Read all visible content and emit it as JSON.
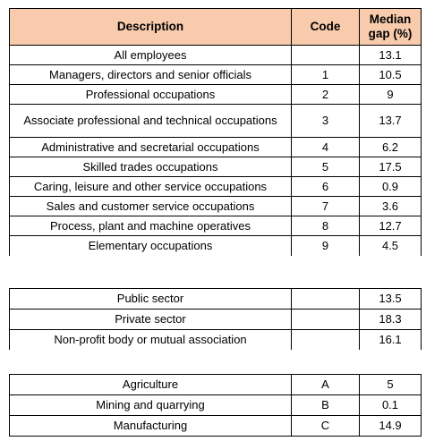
{
  "header": {
    "description": "Description",
    "code": "Code",
    "gap": "Median gap (%)"
  },
  "occupations": [
    {
      "desc": "All employees",
      "code": "",
      "gap": "13.1"
    },
    {
      "desc": "Managers, directors and senior officials",
      "code": "1",
      "gap": "10.5"
    },
    {
      "desc": "Professional occupations",
      "code": "2",
      "gap": "9"
    },
    {
      "desc": "Associate professional and technical occupations",
      "code": "3",
      "gap": "13.7"
    },
    {
      "desc": "Administrative and secretarial occupations",
      "code": "4",
      "gap": "6.2"
    },
    {
      "desc": "Skilled trades occupations",
      "code": "5",
      "gap": "17.5"
    },
    {
      "desc": "Caring, leisure and other service occupations",
      "code": "6",
      "gap": "0.9"
    },
    {
      "desc": "Sales and customer service occupations",
      "code": "7",
      "gap": "3.6"
    },
    {
      "desc": "Process, plant and machine operatives",
      "code": "8",
      "gap": "12.7"
    },
    {
      "desc": "Elementary occupations",
      "code": "9",
      "gap": "4.5"
    }
  ],
  "sectors": [
    {
      "desc": "Public sector",
      "code": "",
      "gap": "13.5"
    },
    {
      "desc": "Private sector",
      "code": "",
      "gap": "18.3"
    },
    {
      "desc": "Non-profit body or mutual association",
      "code": "",
      "gap": "16.1"
    }
  ],
  "industries": [
    {
      "desc": "Agriculture",
      "code": "A",
      "gap": "5"
    },
    {
      "desc": "Mining and quarrying",
      "code": "B",
      "gap": "0.1"
    },
    {
      "desc": "Manufacturing",
      "code": "C",
      "gap": "14.9"
    }
  ]
}
